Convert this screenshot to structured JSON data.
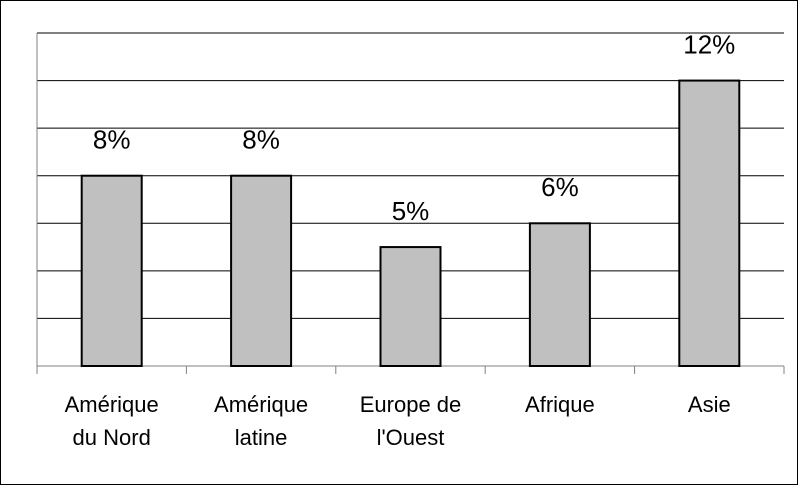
{
  "chart_data": {
    "type": "bar",
    "categories": [
      "Amérique\ndu Nord",
      "Amérique\nlatine",
      "Europe de\nl'Ouest",
      "Afrique",
      "Asie"
    ],
    "values": [
      8,
      8,
      5,
      6,
      12
    ],
    "value_labels": [
      "8%",
      "8%",
      "5%",
      "6%",
      "12%"
    ],
    "color": "#c0c0c0",
    "ylim": [
      0,
      14
    ],
    "yticks": [
      0,
      2,
      4,
      6,
      8,
      10,
      12,
      14
    ],
    "ytick_labels": false,
    "grid": true
  }
}
